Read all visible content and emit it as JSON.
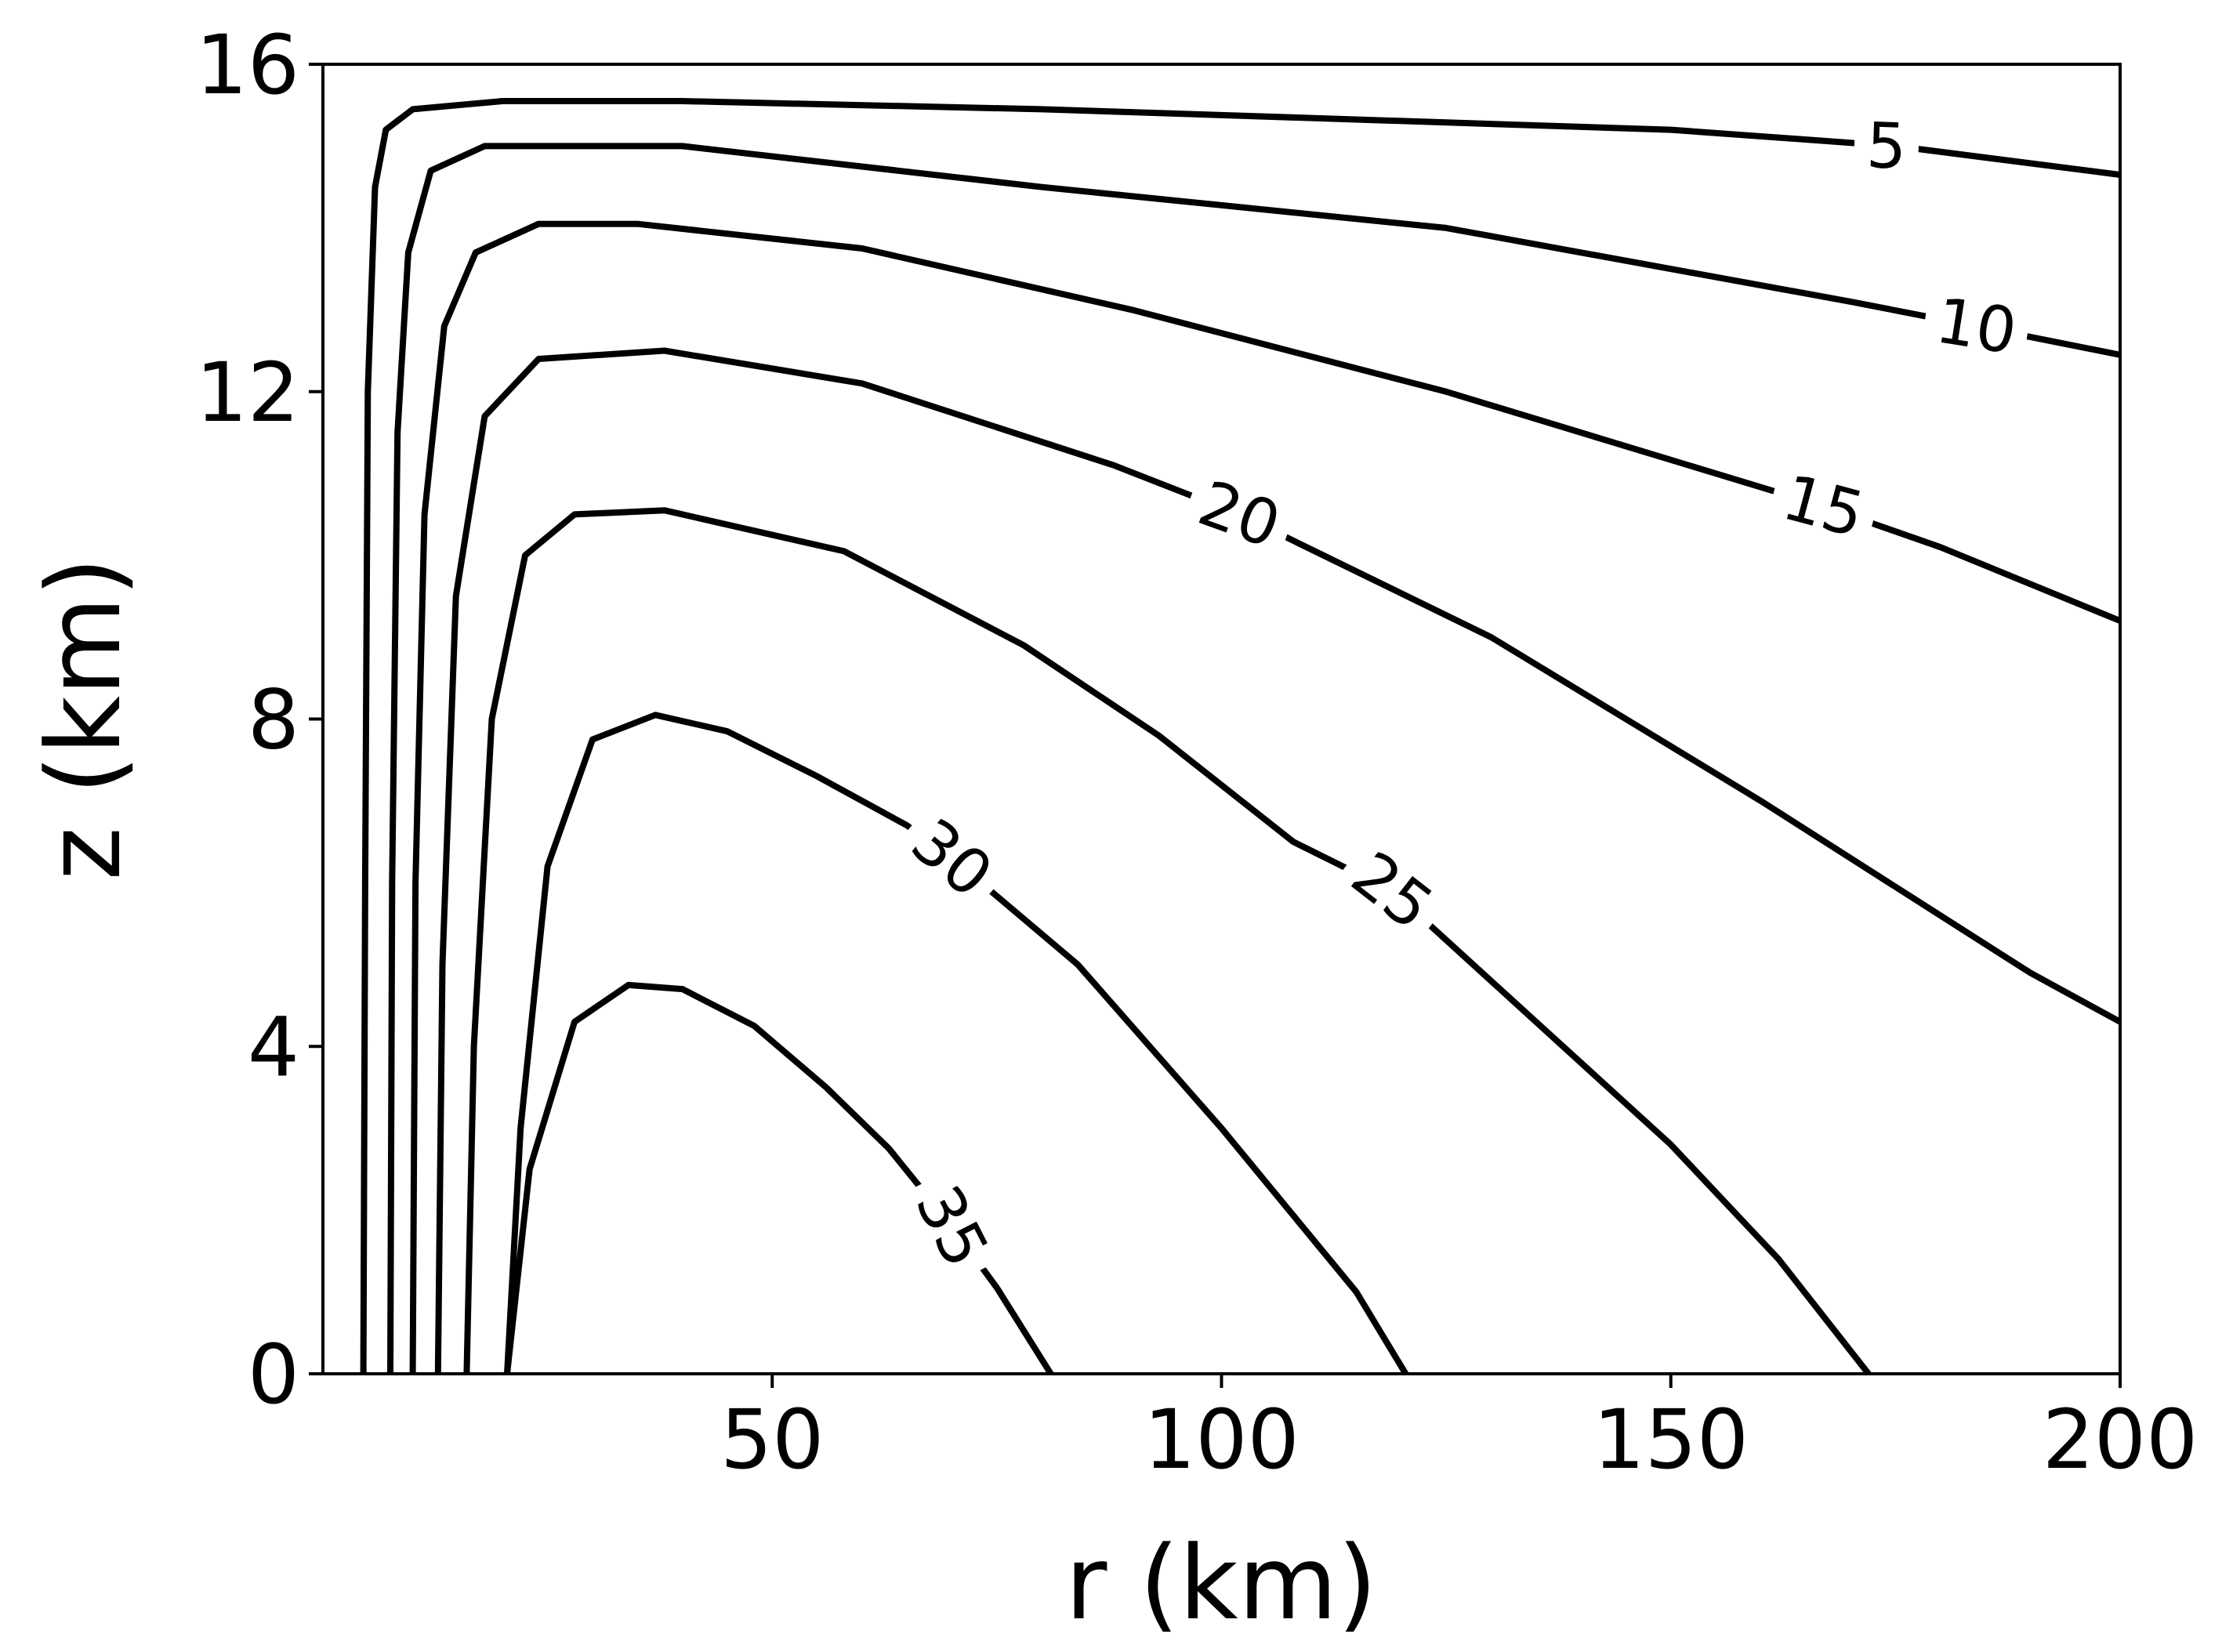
{
  "chart_data": {
    "type": "contour",
    "title": "",
    "xlabel": "r (km)",
    "ylabel": "z (km)",
    "xlim": [
      0,
      200
    ],
    "ylim": [
      0,
      16
    ],
    "xticks": [
      50,
      100,
      150,
      200
    ],
    "yticks": [
      0,
      4,
      8,
      12,
      16
    ],
    "grid": false,
    "line_color": "#000000",
    "contours": [
      {
        "level": "5",
        "label_at": [
          174,
          15.0
        ],
        "label_angle": 2,
        "points": [
          [
            4.5,
            0
          ],
          [
            4.7,
            6
          ],
          [
            5,
            12
          ],
          [
            5.8,
            14.5
          ],
          [
            7,
            15.2
          ],
          [
            10,
            15.45
          ],
          [
            20,
            15.55
          ],
          [
            40,
            15.55
          ],
          [
            80,
            15.45
          ],
          [
            150,
            15.2
          ],
          [
            175,
            15.0
          ],
          [
            200,
            14.65
          ]
        ]
      },
      {
        "level": "10",
        "label_at": [
          184,
          12.8
        ],
        "label_angle": 9,
        "points": [
          [
            7.5,
            0
          ],
          [
            7.7,
            6
          ],
          [
            8.3,
            11.5
          ],
          [
            9.5,
            13.7
          ],
          [
            12,
            14.7
          ],
          [
            18,
            15.0
          ],
          [
            40,
            15.0
          ],
          [
            80,
            14.5
          ],
          [
            125,
            14.0
          ],
          [
            170,
            13.1
          ],
          [
            184,
            12.8
          ],
          [
            200,
            12.45
          ]
        ]
      },
      {
        "level": "15",
        "label_at": [
          167,
          10.6
        ],
        "label_angle": 15,
        "points": [
          [
            10,
            0
          ],
          [
            10.3,
            6
          ],
          [
            11.3,
            10.5
          ],
          [
            13.5,
            12.8
          ],
          [
            17,
            13.7
          ],
          [
            24,
            14.05
          ],
          [
            35,
            14.05
          ],
          [
            60,
            13.75
          ],
          [
            90,
            13.0
          ],
          [
            125,
            12.0
          ],
          [
            155,
            11.0
          ],
          [
            167,
            10.6
          ],
          [
            180,
            10.1
          ],
          [
            200,
            9.2
          ]
        ]
      },
      {
        "level": "20",
        "label_at": [
          102,
          10.5
        ],
        "label_angle": 20,
        "points": [
          [
            12.8,
            0
          ],
          [
            13.3,
            5
          ],
          [
            14.8,
            9.5
          ],
          [
            18,
            11.7
          ],
          [
            24,
            12.4
          ],
          [
            38,
            12.5
          ],
          [
            60,
            12.1
          ],
          [
            88,
            11.1
          ],
          [
            102,
            10.5
          ],
          [
            130,
            9.0
          ],
          [
            160,
            7.0
          ],
          [
            190,
            4.9
          ],
          [
            200,
            4.3
          ]
        ]
      },
      {
        "level": "25",
        "label_at": [
          119,
          5.9
        ],
        "label_angle": 38,
        "points": [
          [
            16,
            0
          ],
          [
            16.8,
            4
          ],
          [
            18.8,
            8
          ],
          [
            22.5,
            10.0
          ],
          [
            28,
            10.5
          ],
          [
            38,
            10.55
          ],
          [
            58,
            10.05
          ],
          [
            78,
            8.9
          ],
          [
            93,
            7.8
          ],
          [
            108,
            6.5
          ],
          [
            119,
            5.9
          ],
          [
            135,
            4.3
          ],
          [
            150,
            2.8
          ],
          [
            162,
            1.4
          ],
          [
            172,
            0
          ]
        ]
      },
      {
        "level": "30",
        "label_at": [
          70,
          6.3
        ],
        "label_angle": 40,
        "points": [
          [
            20.5,
            0
          ],
          [
            22,
            3
          ],
          [
            25,
            6.2
          ],
          [
            30,
            7.75
          ],
          [
            37,
            8.05
          ],
          [
            45,
            7.85
          ],
          [
            55,
            7.3
          ],
          [
            65,
            6.7
          ],
          [
            70,
            6.3
          ],
          [
            84,
            5.0
          ],
          [
            100,
            3.0
          ],
          [
            115,
            1.0
          ],
          [
            120.5,
            0
          ]
        ]
      },
      {
        "level": "35",
        "label_at": [
          70,
          1.8
        ],
        "label_angle": 63,
        "points": [
          [
            20.5,
            0
          ],
          [
            23,
            2.5
          ],
          [
            28,
            4.3
          ],
          [
            34,
            4.75
          ],
          [
            40,
            4.7
          ],
          [
            48,
            4.25
          ],
          [
            56,
            3.5
          ],
          [
            63,
            2.75
          ],
          [
            70,
            1.8
          ],
          [
            75,
            1.05
          ],
          [
            81,
            0
          ]
        ]
      }
    ]
  }
}
